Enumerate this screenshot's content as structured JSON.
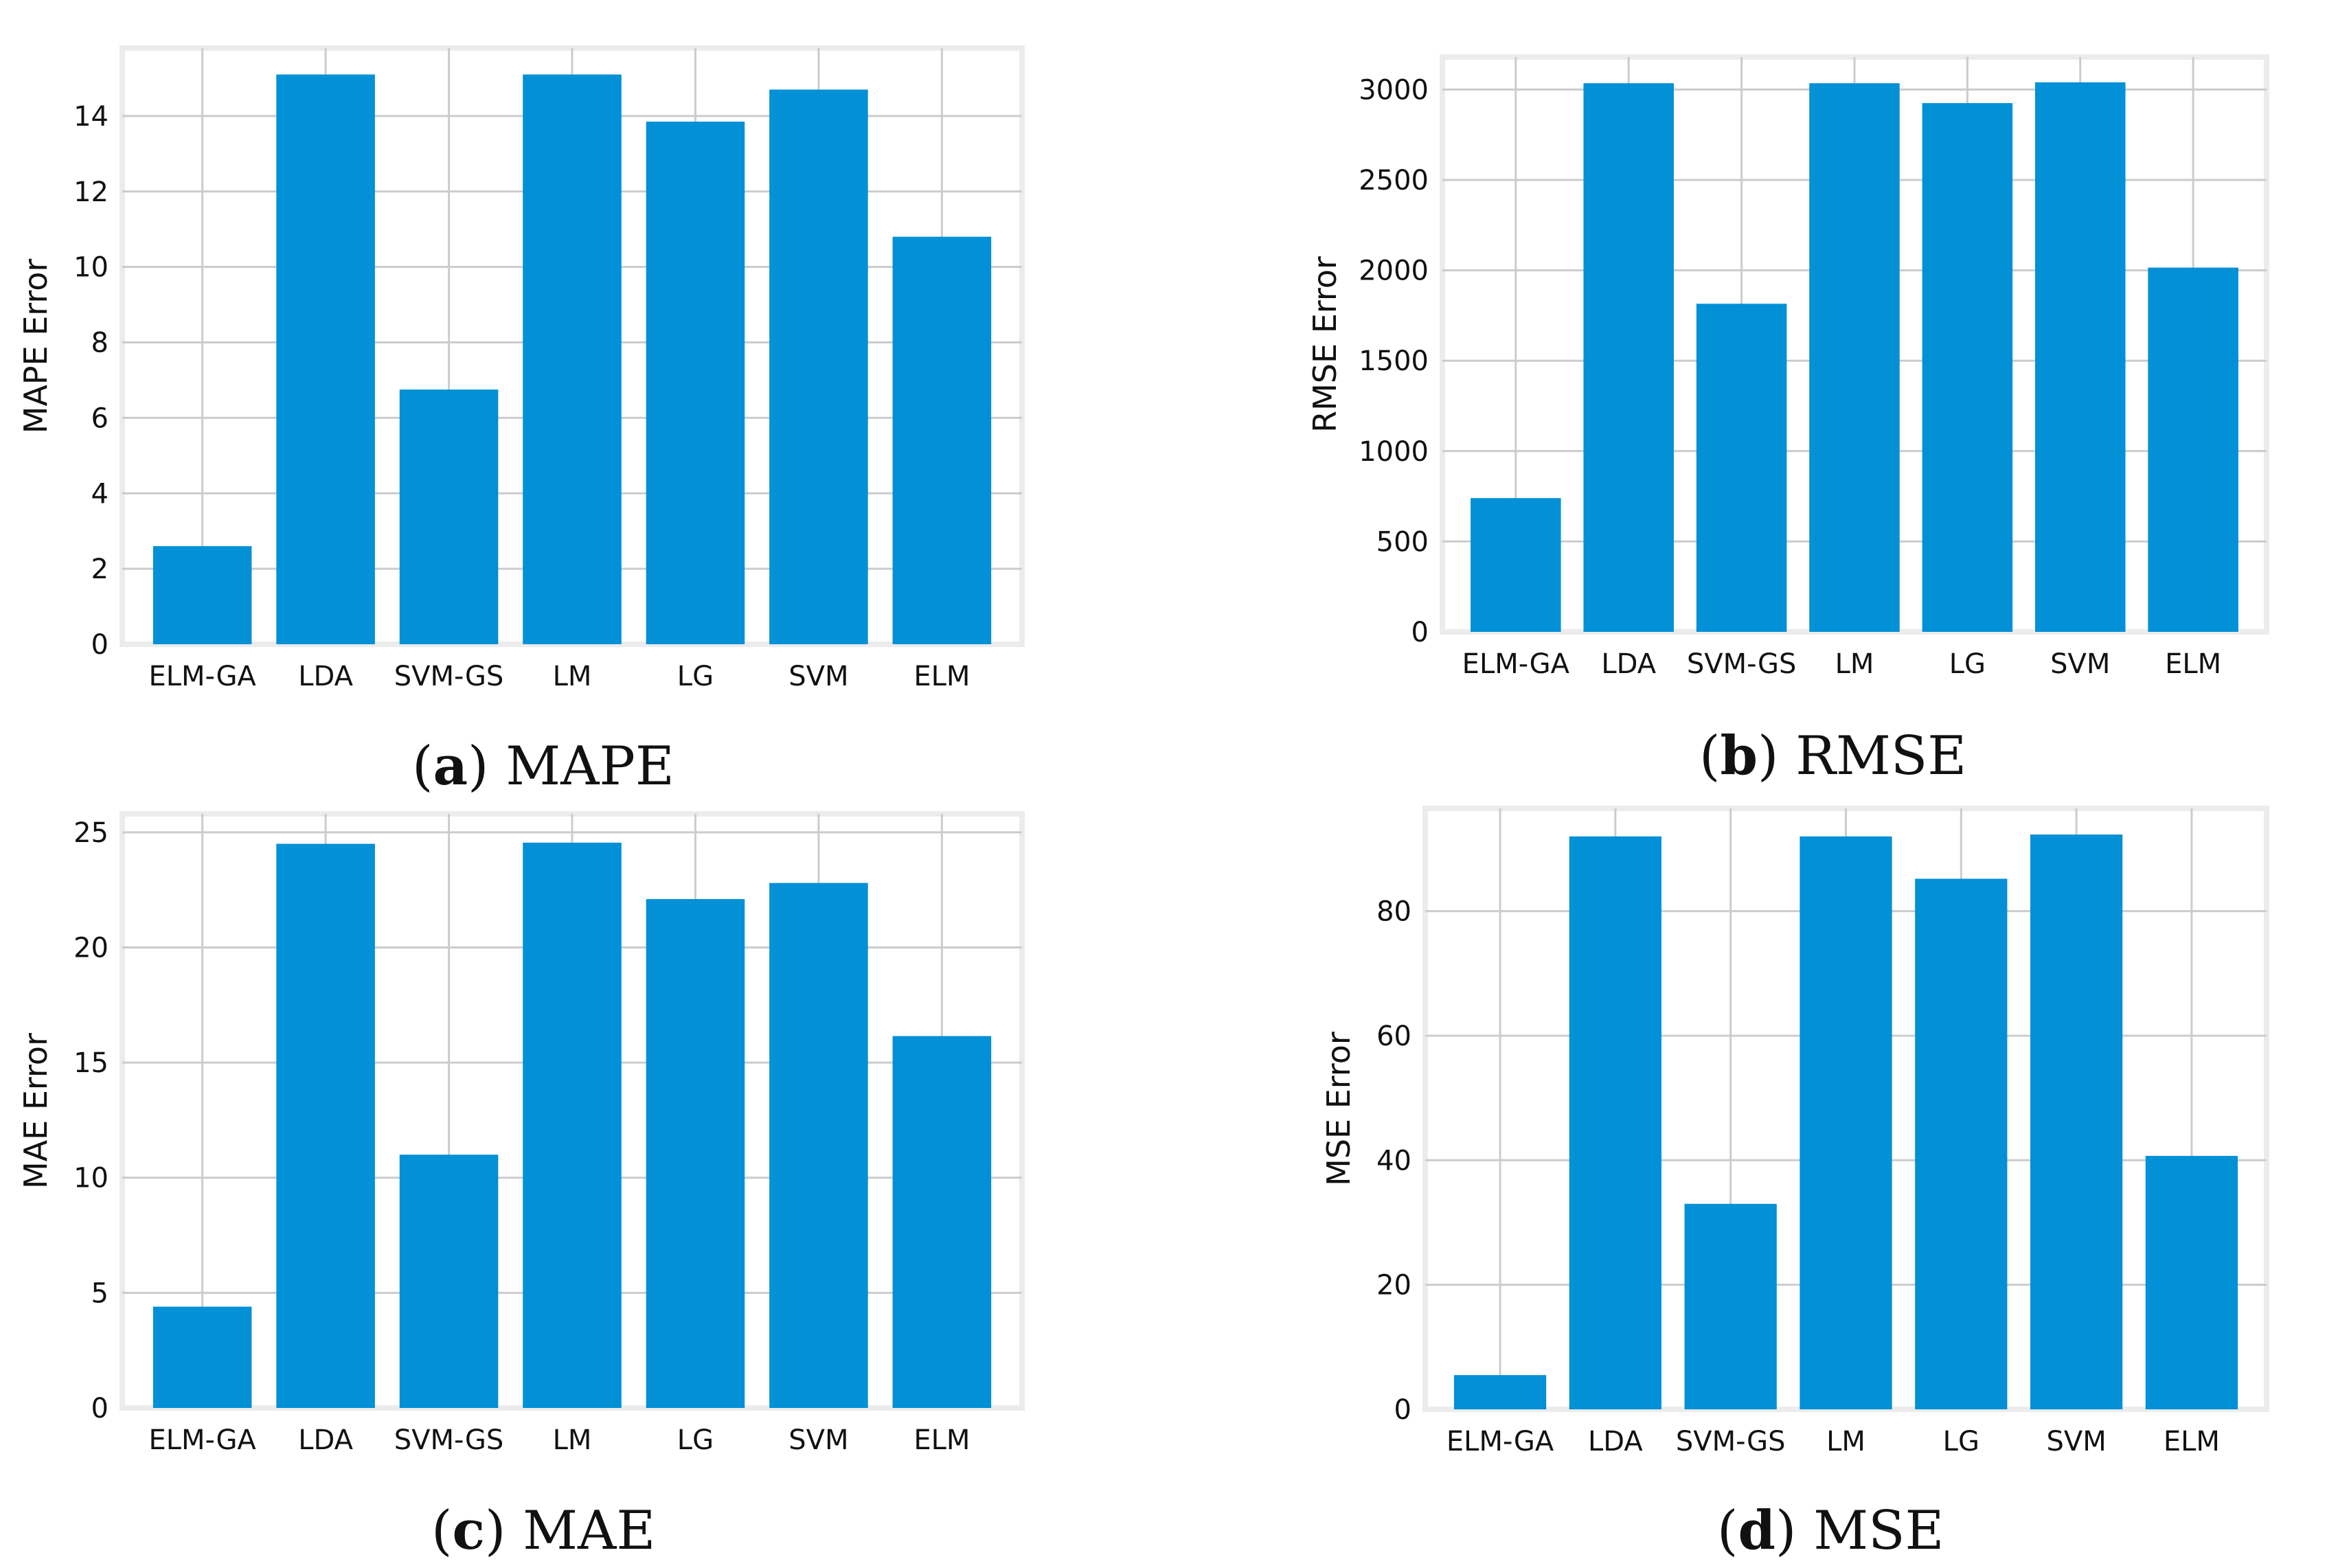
{
  "colors": {
    "bar": "#0290d6",
    "grid": "#cccccc",
    "frame": "#ececec",
    "text": "#111111"
  },
  "chart_data": [
    {
      "type": "bar",
      "panel": "a",
      "caption_letter": "a",
      "caption_text": "MAPE",
      "ylabel": "MAPE Error",
      "categories": [
        "ELM-GA",
        "LDA",
        "SVM-GS",
        "LM",
        "LG",
        "SVM",
        "ELM"
      ],
      "values": [
        2.6,
        15.1,
        6.75,
        15.1,
        13.85,
        14.7,
        10.8
      ],
      "ylim": [
        0,
        15.8
      ],
      "yticks": [
        0,
        2,
        4,
        6,
        8,
        10,
        12,
        14
      ],
      "grid": true
    },
    {
      "type": "bar",
      "panel": "b",
      "caption_letter": "b",
      "caption_text": "RMSE",
      "ylabel": "RMSE Error",
      "categories": [
        "ELM-GA",
        "LDA",
        "SVM-GS",
        "LM",
        "LG",
        "SVM",
        "ELM"
      ],
      "values": [
        740,
        3035,
        1815,
        3035,
        2925,
        3040,
        2015
      ],
      "ylim": [
        0,
        3180
      ],
      "yticks": [
        0,
        500,
        1000,
        1500,
        2000,
        2500,
        3000
      ],
      "grid": true
    },
    {
      "type": "bar",
      "panel": "c",
      "caption_letter": "c",
      "caption_text": "MAE",
      "ylabel": "MAE Error",
      "categories": [
        "ELM-GA",
        "LDA",
        "SVM-GS",
        "LM",
        "LG",
        "SVM",
        "ELM"
      ],
      "values": [
        4.4,
        24.5,
        11.0,
        24.55,
        22.1,
        22.8,
        16.15
      ],
      "ylim": [
        0,
        25.8
      ],
      "yticks": [
        0,
        5,
        10,
        15,
        20,
        25
      ],
      "grid": true
    },
    {
      "type": "bar",
      "panel": "d",
      "caption_letter": "d",
      "caption_text": "MSE",
      "ylabel": "MSE Error",
      "categories": [
        "ELM-GA",
        "LDA",
        "SVM-GS",
        "LM",
        "LG",
        "SVM",
        "ELM"
      ],
      "values": [
        5.5,
        92.0,
        33.0,
        92.0,
        85.2,
        92.3,
        40.7
      ],
      "ylim": [
        0,
        96.5
      ],
      "yticks": [
        0,
        20,
        40,
        60,
        80
      ],
      "grid": true
    }
  ]
}
